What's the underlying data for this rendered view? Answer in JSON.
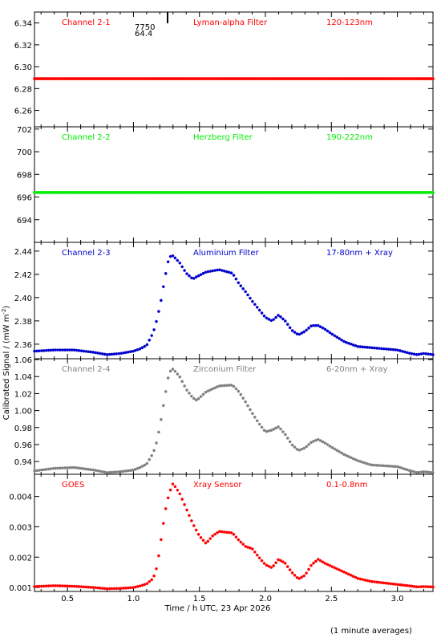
{
  "figure": {
    "ylabel": "Calibrated Signal / (mW m",
    "ylabel_sup": "-2",
    "ylabel_end": ")",
    "footnote": "(1 minute averages)"
  },
  "chart_data": [
    {
      "type": "scatter",
      "xlabel": "",
      "ylabel": "",
      "xlim": [
        0.25,
        3.27
      ],
      "ylim": [
        6.245,
        6.35
      ],
      "yticks": [
        "6.34",
        "6.32",
        "6.30",
        "6.28",
        "6.26"
      ],
      "ytick_values": [
        6.34,
        6.32,
        6.3,
        6.28,
        6.26
      ],
      "labels": {
        "channel": "Channel 2-1",
        "filter": "Lyman-alpha Filter",
        "band": "120-123nm"
      },
      "annotation": {
        "line1": "7750",
        "line2": "64.4"
      },
      "color": "#ff0000",
      "series": [
        {
          "x": [
            0.25,
            3.27
          ],
          "y": [
            6.289,
            6.289
          ]
        }
      ]
    },
    {
      "type": "scatter",
      "xlabel": "",
      "ylabel": "",
      "xlim": [
        0.25,
        3.27
      ],
      "ylim": [
        692.0,
        702.2
      ],
      "yticks": [
        "702",
        "700",
        "698",
        "696",
        "694"
      ],
      "ytick_values": [
        702,
        700,
        698,
        696,
        694
      ],
      "labels": {
        "channel": "Channel 2-2",
        "filter": "Herzberg Filter",
        "band": "190-222nm"
      },
      "color": "#00ee00",
      "series": [
        {
          "x": [
            0.25,
            3.27
          ],
          "y": [
            696.4,
            696.4
          ]
        }
      ]
    },
    {
      "type": "scatter",
      "xlabel": "",
      "ylabel": "",
      "xlim": [
        0.25,
        3.27
      ],
      "ylim": [
        2.3475,
        2.4475
      ],
      "yticks": [
        "2.44",
        "2.42",
        "2.40",
        "2.38",
        "2.36"
      ],
      "ytick_values": [
        2.44,
        2.42,
        2.4,
        2.38,
        2.36
      ],
      "labels": {
        "channel": "Channel 2-3",
        "filter": "Aluminium Filter",
        "band": "17-80nm + Xray"
      },
      "color": "#0000cc",
      "series": [
        {
          "x": [
            0.25,
            0.4,
            0.55,
            0.7,
            0.8,
            0.9,
            1.0,
            1.05,
            1.1,
            1.15,
            1.18,
            1.21,
            1.24,
            1.27,
            1.3,
            1.35,
            1.4,
            1.45,
            1.48,
            1.55,
            1.65,
            1.75,
            1.8,
            1.85,
            1.9,
            1.95,
            2.0,
            2.05,
            2.1,
            2.15,
            2.2,
            2.25,
            2.3,
            2.35,
            2.4,
            2.45,
            2.5,
            2.6,
            2.7,
            2.8,
            3.0,
            3.1,
            3.15,
            3.2,
            3.27
          ],
          "y": [
            2.354,
            2.355,
            2.355,
            2.353,
            2.351,
            2.352,
            2.354,
            2.356,
            2.359,
            2.37,
            2.382,
            2.398,
            2.418,
            2.435,
            2.436,
            2.43,
            2.421,
            2.416,
            2.418,
            2.422,
            2.424,
            2.421,
            2.412,
            2.405,
            2.397,
            2.39,
            2.383,
            2.38,
            2.385,
            2.38,
            2.372,
            2.368,
            2.371,
            2.376,
            2.376,
            2.373,
            2.369,
            2.362,
            2.358,
            2.357,
            2.355,
            2.352,
            2.351,
            2.352,
            2.351
          ]
        }
      ]
    },
    {
      "type": "scatter",
      "xlabel": "",
      "ylabel": "",
      "xlim": [
        0.25,
        3.27
      ],
      "ylim": [
        0.925,
        1.061
      ],
      "yticks": [
        "1.06",
        "1.04",
        "1.02",
        "1.00",
        "0.98",
        "0.96",
        "0.94"
      ],
      "ytick_values": [
        1.06,
        1.04,
        1.02,
        1.0,
        0.98,
        0.96,
        0.94
      ],
      "labels": {
        "channel": "Channel 2-4",
        "filter": "Zirconium Filter",
        "band": "6-20nm + Xray"
      },
      "color": "#808080",
      "series": [
        {
          "x": [
            0.25,
            0.4,
            0.55,
            0.7,
            0.8,
            0.9,
            1.0,
            1.05,
            1.1,
            1.15,
            1.18,
            1.21,
            1.24,
            1.27,
            1.3,
            1.35,
            1.4,
            1.45,
            1.48,
            1.55,
            1.65,
            1.75,
            1.8,
            1.85,
            1.9,
            1.95,
            2.0,
            2.05,
            2.1,
            2.15,
            2.2,
            2.25,
            2.3,
            2.35,
            2.4,
            2.45,
            2.5,
            2.6,
            2.7,
            2.8,
            3.0,
            3.1,
            3.15,
            3.2,
            3.27
          ],
          "y": [
            0.929,
            0.932,
            0.933,
            0.93,
            0.927,
            0.928,
            0.93,
            0.933,
            0.937,
            0.95,
            0.965,
            0.99,
            1.018,
            1.045,
            1.049,
            1.04,
            1.025,
            1.015,
            1.012,
            1.022,
            1.029,
            1.03,
            1.022,
            1.01,
            0.997,
            0.985,
            0.975,
            0.977,
            0.981,
            0.972,
            0.96,
            0.953,
            0.956,
            0.963,
            0.966,
            0.962,
            0.957,
            0.948,
            0.941,
            0.936,
            0.934,
            0.929,
            0.927,
            0.928,
            0.927
          ]
        }
      ]
    },
    {
      "type": "scatter",
      "xlabel": "Time / h UTC, 23 Apr 2026",
      "ylabel": "",
      "xlim": [
        0.25,
        3.27
      ],
      "ylim": [
        0.00087,
        0.00473
      ],
      "yticks": [
        "0.004",
        "0.003",
        "0.002",
        "0.001"
      ],
      "ytick_values": [
        0.004,
        0.003,
        0.002,
        0.001
      ],
      "xticks": [
        "0.5",
        "1.0",
        "1.5",
        "2.0",
        "2.5",
        "3.0"
      ],
      "xtick_values": [
        0.5,
        1.0,
        1.5,
        2.0,
        2.5,
        3.0
      ],
      "labels": {
        "channel": "GOES",
        "filter": "Xray Sensor",
        "band": "0.1-0.8nm"
      },
      "color": "#ff0000",
      "series": [
        {
          "x": [
            0.25,
            0.4,
            0.55,
            0.7,
            0.8,
            0.9,
            1.0,
            1.05,
            1.1,
            1.15,
            1.18,
            1.21,
            1.24,
            1.27,
            1.3,
            1.35,
            1.4,
            1.45,
            1.5,
            1.55,
            1.6,
            1.65,
            1.7,
            1.75,
            1.8,
            1.85,
            1.9,
            1.95,
            2.0,
            2.05,
            2.1,
            2.15,
            2.2,
            2.25,
            2.3,
            2.35,
            2.4,
            2.45,
            2.5,
            2.6,
            2.7,
            2.8,
            3.0,
            3.1,
            3.15,
            3.2,
            3.27
          ],
          "y": [
            0.00103,
            0.00106,
            0.00104,
            0.001,
            0.00096,
            0.00097,
            0.001,
            0.00105,
            0.00112,
            0.0013,
            0.0017,
            0.0026,
            0.0035,
            0.0041,
            0.00443,
            0.0041,
            0.0036,
            0.0031,
            0.0027,
            0.00245,
            0.0027,
            0.00285,
            0.00282,
            0.0028,
            0.00255,
            0.00235,
            0.00228,
            0.002,
            0.00175,
            0.00165,
            0.00193,
            0.0018,
            0.0015,
            0.00128,
            0.0014,
            0.00175,
            0.00193,
            0.0018,
            0.0017,
            0.0015,
            0.0013,
            0.0012,
            0.0011,
            0.00105,
            0.00102,
            0.00103,
            0.00102
          ]
        }
      ]
    }
  ]
}
